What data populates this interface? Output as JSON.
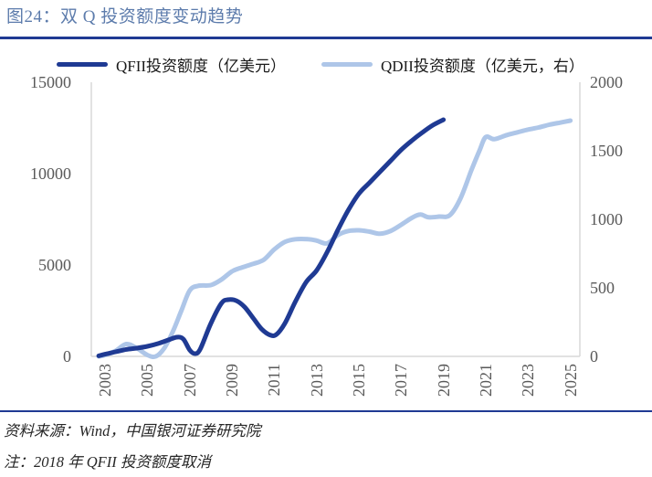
{
  "title": "图24：双 Q 投资额度变动趋势",
  "legend": [
    {
      "id": "qfii",
      "label": "QFII投资额度（亿美元）",
      "color": "#1f3a93"
    },
    {
      "id": "qdii",
      "label": "QDII投资额度（亿美元，右）",
      "color": "#aec6e8"
    }
  ],
  "footer": {
    "source": "资料来源：Wind，中国银河证券研究院",
    "note": "注：2018 年 QFII 投资额度取消"
  },
  "colors": {
    "title": "#5d7cac",
    "rule": "#1f3a93",
    "axis_line": "#d9d9d9",
    "tick_text": "#595959",
    "qfii_line": "#1f3a93",
    "qdii_line": "#aec6e8"
  },
  "chart_data": {
    "type": "line",
    "title": "双 Q 投资额度变动趋势",
    "grid": false,
    "legend_position": "top",
    "x_axis": {
      "range": [
        2002.35,
        2025.45
      ],
      "ticks": [
        2003,
        2005,
        2007,
        2009,
        2011,
        2013,
        2015,
        2017,
        2019,
        2021,
        2023,
        2025
      ]
    },
    "left_axis": {
      "label": "QFII投资额度（亿美元）",
      "range": [
        0,
        15000
      ],
      "ticks": [
        0,
        5000,
        10000,
        15000
      ]
    },
    "right_axis": {
      "label": "QDII投资额度（亿美元，右）",
      "range": [
        0,
        2000
      ],
      "ticks": [
        0,
        500,
        1000,
        1500,
        2000
      ]
    },
    "series": [
      {
        "id": "qdii",
        "name": "QDII投资额度（亿美元，右）",
        "axis": "right",
        "color": "#aec6e8",
        "points": [
          [
            2002.7,
            0
          ],
          [
            2003,
            10
          ],
          [
            2003.5,
            40
          ],
          [
            2004,
            90
          ],
          [
            2004.5,
            60
          ],
          [
            2005,
            10
          ],
          [
            2005.4,
            0
          ],
          [
            2005.8,
            60
          ],
          [
            2006.2,
            180
          ],
          [
            2006.6,
            330
          ],
          [
            2007,
            480
          ],
          [
            2007.4,
            515
          ],
          [
            2008,
            520
          ],
          [
            2008.5,
            560
          ],
          [
            2009,
            620
          ],
          [
            2009.5,
            650
          ],
          [
            2010,
            675
          ],
          [
            2010.5,
            705
          ],
          [
            2011,
            780
          ],
          [
            2011.5,
            835
          ],
          [
            2012,
            855
          ],
          [
            2012.6,
            855
          ],
          [
            2013,
            845
          ],
          [
            2013.5,
            825
          ],
          [
            2014,
            885
          ],
          [
            2014.5,
            915
          ],
          [
            2015,
            920
          ],
          [
            2015.5,
            910
          ],
          [
            2016,
            895
          ],
          [
            2016.5,
            915
          ],
          [
            2017,
            960
          ],
          [
            2017.5,
            1010
          ],
          [
            2017.9,
            1035
          ],
          [
            2018.3,
            1015
          ],
          [
            2018.8,
            1020
          ],
          [
            2019.3,
            1030
          ],
          [
            2019.8,
            1150
          ],
          [
            2020.3,
            1350
          ],
          [
            2020.7,
            1500
          ],
          [
            2021,
            1600
          ],
          [
            2021.4,
            1585
          ],
          [
            2022,
            1615
          ],
          [
            2022.5,
            1635
          ],
          [
            2023,
            1655
          ],
          [
            2023.5,
            1670
          ],
          [
            2024,
            1690
          ],
          [
            2024.5,
            1705
          ],
          [
            2025,
            1720
          ]
        ]
      },
      {
        "id": "qfii",
        "name": "QFII投资额度（亿美元）",
        "axis": "left",
        "color": "#1f3a93",
        "points": [
          [
            2002.7,
            30
          ],
          [
            2003,
            120
          ],
          [
            2003.5,
            250
          ],
          [
            2004,
            380
          ],
          [
            2004.5,
            450
          ],
          [
            2005,
            550
          ],
          [
            2005.5,
            700
          ],
          [
            2006,
            900
          ],
          [
            2006.4,
            1050
          ],
          [
            2006.7,
            950
          ],
          [
            2007,
            350
          ],
          [
            2007.25,
            150
          ],
          [
            2007.5,
            400
          ],
          [
            2008,
            1800
          ],
          [
            2008.5,
            2900
          ],
          [
            2008.8,
            3100
          ],
          [
            2009.2,
            3050
          ],
          [
            2009.6,
            2700
          ],
          [
            2010,
            2100
          ],
          [
            2010.4,
            1500
          ],
          [
            2010.8,
            1170
          ],
          [
            2011.1,
            1200
          ],
          [
            2011.5,
            1800
          ],
          [
            2012,
            3000
          ],
          [
            2012.5,
            4050
          ],
          [
            2013,
            4700
          ],
          [
            2013.5,
            5700
          ],
          [
            2014,
            6900
          ],
          [
            2014.5,
            8000
          ],
          [
            2015,
            8900
          ],
          [
            2015.5,
            9500
          ],
          [
            2016,
            10100
          ],
          [
            2016.5,
            10700
          ],
          [
            2017,
            11300
          ],
          [
            2017.5,
            11800
          ],
          [
            2018,
            12250
          ],
          [
            2018.5,
            12650
          ],
          [
            2019,
            12950
          ]
        ]
      }
    ]
  }
}
